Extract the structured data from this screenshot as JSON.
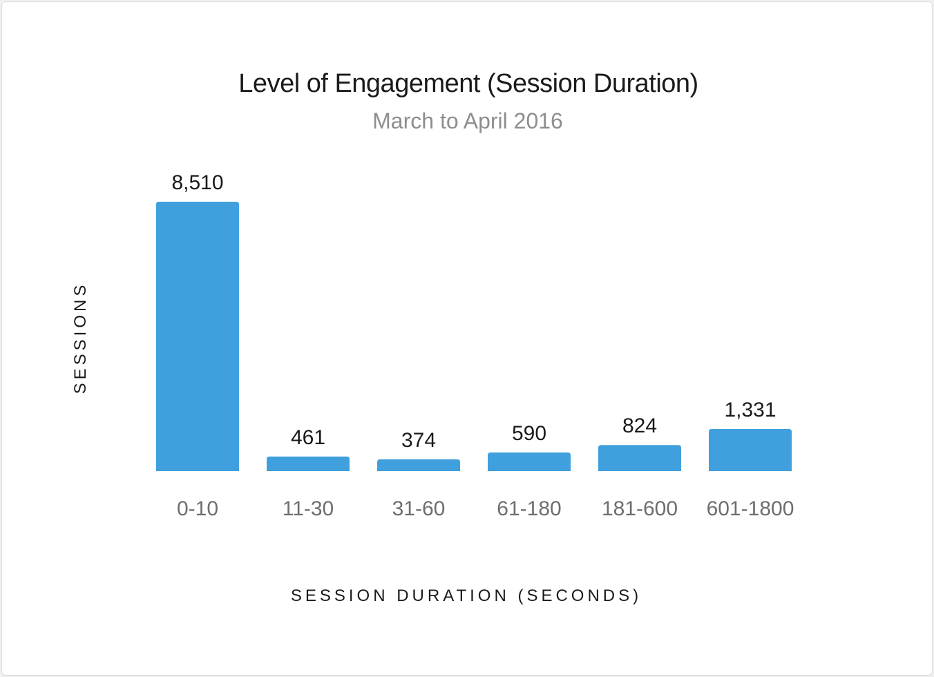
{
  "chart_data": {
    "type": "bar",
    "title": "Level of Engagement (Session Duration)",
    "subtitle": "March to April 2016",
    "xlabel": "SESSION DURATION (SECONDS)",
    "ylabel": "SESSIONS",
    "categories": [
      "0-10",
      "11-30",
      "31-60",
      "61-180",
      "181-600",
      "601-1800"
    ],
    "values": [
      8510,
      461,
      374,
      590,
      824,
      1331
    ],
    "value_labels": [
      "8,510",
      "461",
      "374",
      "590",
      "824",
      "1,331"
    ],
    "ylim": [
      0,
      8510
    ],
    "grid": false,
    "legend": "none",
    "bar_color": "#3fa0dd"
  }
}
